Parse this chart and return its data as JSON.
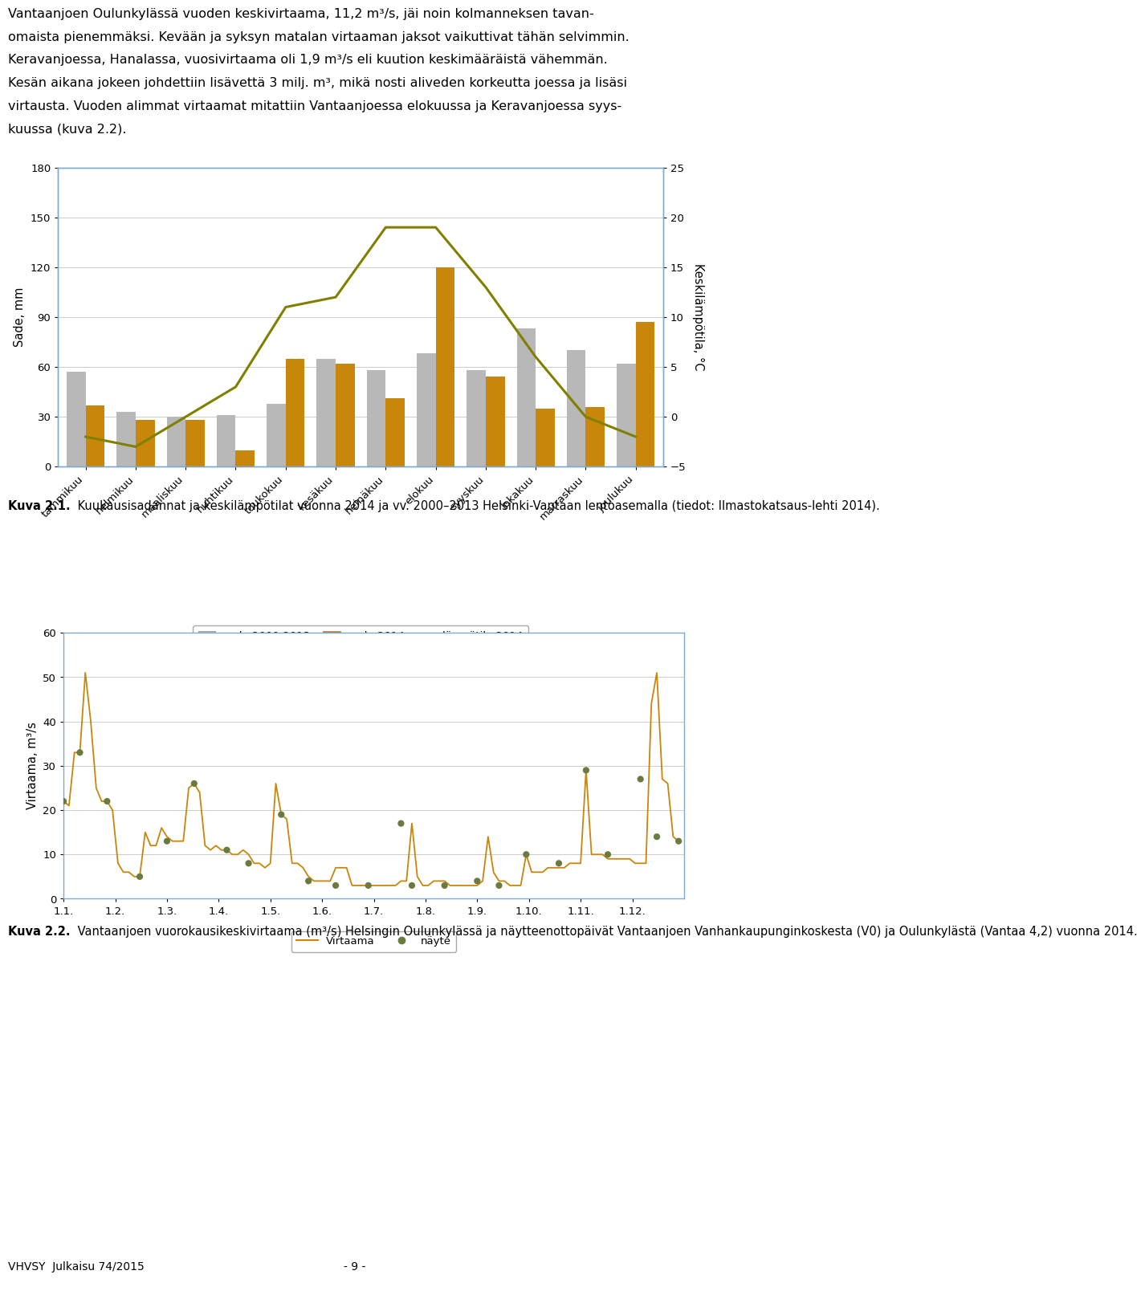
{
  "chart1": {
    "months": [
      "tammikuu",
      "helmikuu",
      "maaliskuu",
      "huhtikuu",
      "toukokuu",
      "kesäkuu",
      "heinäkuu",
      "elokuu",
      "syyskuu",
      "lokakuu",
      "marraskuu",
      "joulukuu"
    ],
    "sade_avg": [
      57,
      33,
      30,
      31,
      38,
      65,
      58,
      68,
      58,
      83,
      70,
      62
    ],
    "sade_2014": [
      37,
      28,
      28,
      10,
      65,
      62,
      41,
      120,
      54,
      35,
      36,
      87
    ],
    "lampotila_2014": [
      -2,
      -3,
      0,
      3,
      11,
      12,
      19,
      19,
      13,
      6,
      0,
      -2
    ],
    "ylabel_left": "Sade, mm",
    "ylabel_right": "Keskilämpötila, °C",
    "ylim_left": [
      0,
      180
    ],
    "ylim_right": [
      -5,
      25
    ],
    "yticks_left": [
      0,
      30,
      60,
      90,
      120,
      150,
      180
    ],
    "yticks_right": [
      -5,
      0,
      5,
      10,
      15,
      20,
      25
    ],
    "legend_sade_avg": "sade 2000-2013",
    "legend_sade_2014": "sade 2014",
    "legend_lampotila": "lämpötila 2014",
    "bar_color_avg": "#b8b8b8",
    "bar_color_2014": "#c8860a",
    "line_color": "#808000",
    "border_color": "#7faacc"
  },
  "chart2": {
    "ylabel": "Virtaama, m³/s",
    "ylim": [
      0,
      60
    ],
    "yticks": [
      0,
      10,
      20,
      30,
      40,
      50,
      60
    ],
    "xticks": [
      "1.1.",
      "1.2.",
      "1.3.",
      "1.4.",
      "1.5.",
      "1.6.",
      "1.7.",
      "1.8.",
      "1.9.",
      "1.10.",
      "1.11.",
      "1.12."
    ],
    "line_color": "#c8860a",
    "dot_color": "#6b7a3e",
    "legend_virtaama": "Virtaama",
    "legend_nayte": "näyte",
    "border_color": "#7faacc",
    "virtaama": [
      22,
      21,
      33,
      33,
      51,
      40,
      25,
      22,
      22,
      20,
      8,
      6,
      6,
      5,
      5,
      15,
      12,
      12,
      16,
      14,
      13,
      13,
      13,
      25,
      26,
      24,
      12,
      11,
      12,
      11,
      11,
      10,
      10,
      11,
      10,
      8,
      8,
      7,
      8,
      26,
      19,
      18,
      8,
      8,
      7,
      5,
      4,
      4,
      4,
      4,
      7,
      7,
      7,
      3,
      3,
      3,
      3,
      3,
      3,
      3,
      3,
      3,
      4,
      4,
      17,
      5,
      3,
      3,
      4,
      4,
      4,
      3,
      3,
      3,
      3,
      3,
      3,
      4,
      14,
      6,
      4,
      4,
      3,
      3,
      3,
      10,
      6,
      6,
      6,
      7,
      7,
      7,
      7,
      8,
      8,
      8,
      29,
      10,
      10,
      10,
      9,
      9,
      9,
      9,
      9,
      8,
      8,
      8,
      44,
      51,
      27,
      26,
      14,
      13
    ],
    "nayte_x": [
      0,
      3,
      8,
      14,
      19,
      24,
      30,
      34,
      40,
      45,
      50,
      56,
      62,
      64,
      70,
      76,
      80,
      85,
      91,
      96,
      100,
      106,
      109,
      113
    ],
    "nayte_y": [
      22,
      33,
      22,
      5,
      13,
      26,
      11,
      8,
      19,
      4,
      3,
      3,
      17,
      3,
      3,
      4,
      3,
      10,
      8,
      29,
      10,
      27,
      14,
      13
    ]
  },
  "text_top_lines": [
    "Vantaanjoen Oulunkylässä vuoden keskivirtaama, 11,2 m³/s, jäi noin kolmanneksen tavan-",
    "omaista pienemmäksi. Kevään ja syksyn matalan virtaaman jaksot vaikuttivat tähän selvimmin.",
    "Keravanjoessa, Hanalassa, vuosivirtaama oli 1,9 m³/s eli kuution keskimääräistä vähemmän.",
    "Kesän aikana jokeen johdettiin lisävettä 3 milj. m³, mikä nosti aliveden korkeutta joessa ja lisäsi",
    "virtausta. Vuoden alimmat virtaamat mitattiin Vantaanjoessa elokuussa ja Keravanjoessa syys-",
    "kuussa (kuva 2.2)."
  ],
  "caption1_bold": "Kuva 2.1.",
  "caption1_rest": " Kuukausisadannat ja keskilämpötilat vuonna 2014 ja vv. 2000–2013 Helsinki-Vantaan lentoasemalla (tiedot: Ilmastokatsaus-lehti 2014).",
  "caption2_bold": "Kuva 2.2.",
  "caption2_rest": " Vantaanjoen vuorokausikeskivirtaama (m³/s) Helsingin Oulunkylässä ja näytteenottopäivät Vantaanjoen Vanhankaupunginkoskesta (V0) ja Oulunkylästä (Vantaa 4,2) vuonna 2014.",
  "footer_left": "VHVSY  Julkaisu 74/2015",
  "footer_right": "- 9 -",
  "background_color": "#ffffff",
  "text_fontsize": 11.5,
  "caption_fontsize": 10.5
}
